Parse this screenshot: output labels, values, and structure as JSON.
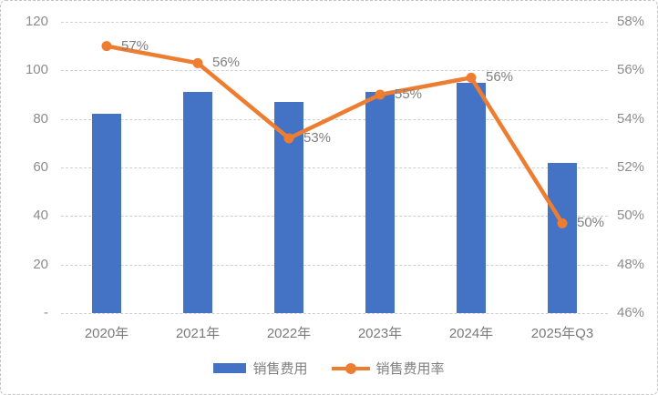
{
  "chart_data": {
    "type": "combo_bar_line",
    "title": "",
    "categories": [
      "2020年",
      "2021年",
      "2022年",
      "2023年",
      "2024年",
      "2025年Q3"
    ],
    "series": [
      {
        "name": "销售费用",
        "type": "bar",
        "axis": "left",
        "color": "#4472C4",
        "values": [
          82,
          91,
          87,
          91,
          95,
          62
        ]
      },
      {
        "name": "销售费用率",
        "type": "line",
        "axis": "right",
        "color": "#ED7D31",
        "values": [
          57.0,
          56.3,
          53.2,
          55.0,
          55.7,
          49.7
        ],
        "labels": [
          "57%",
          "56%",
          "53%",
          "55%",
          "56%",
          "50%"
        ]
      }
    ],
    "left_axis": {
      "min": 0,
      "max": 120,
      "ticks": [
        "120",
        "100",
        "80",
        "60",
        "40",
        "20",
        "-"
      ]
    },
    "right_axis": {
      "min": 46,
      "max": 58,
      "ticks": [
        "58%",
        "56%",
        "54%",
        "52%",
        "50%",
        "48%",
        "46%"
      ]
    },
    "grid": true,
    "gridline_color": "#cfcfcf",
    "legend_position": "bottom"
  },
  "legend": {
    "items": [
      {
        "label": "销售费用",
        "marker": "square",
        "color": "#4472C4"
      },
      {
        "label": "销售费用率",
        "marker": "line-circle",
        "color": "#ED7D31"
      }
    ]
  }
}
